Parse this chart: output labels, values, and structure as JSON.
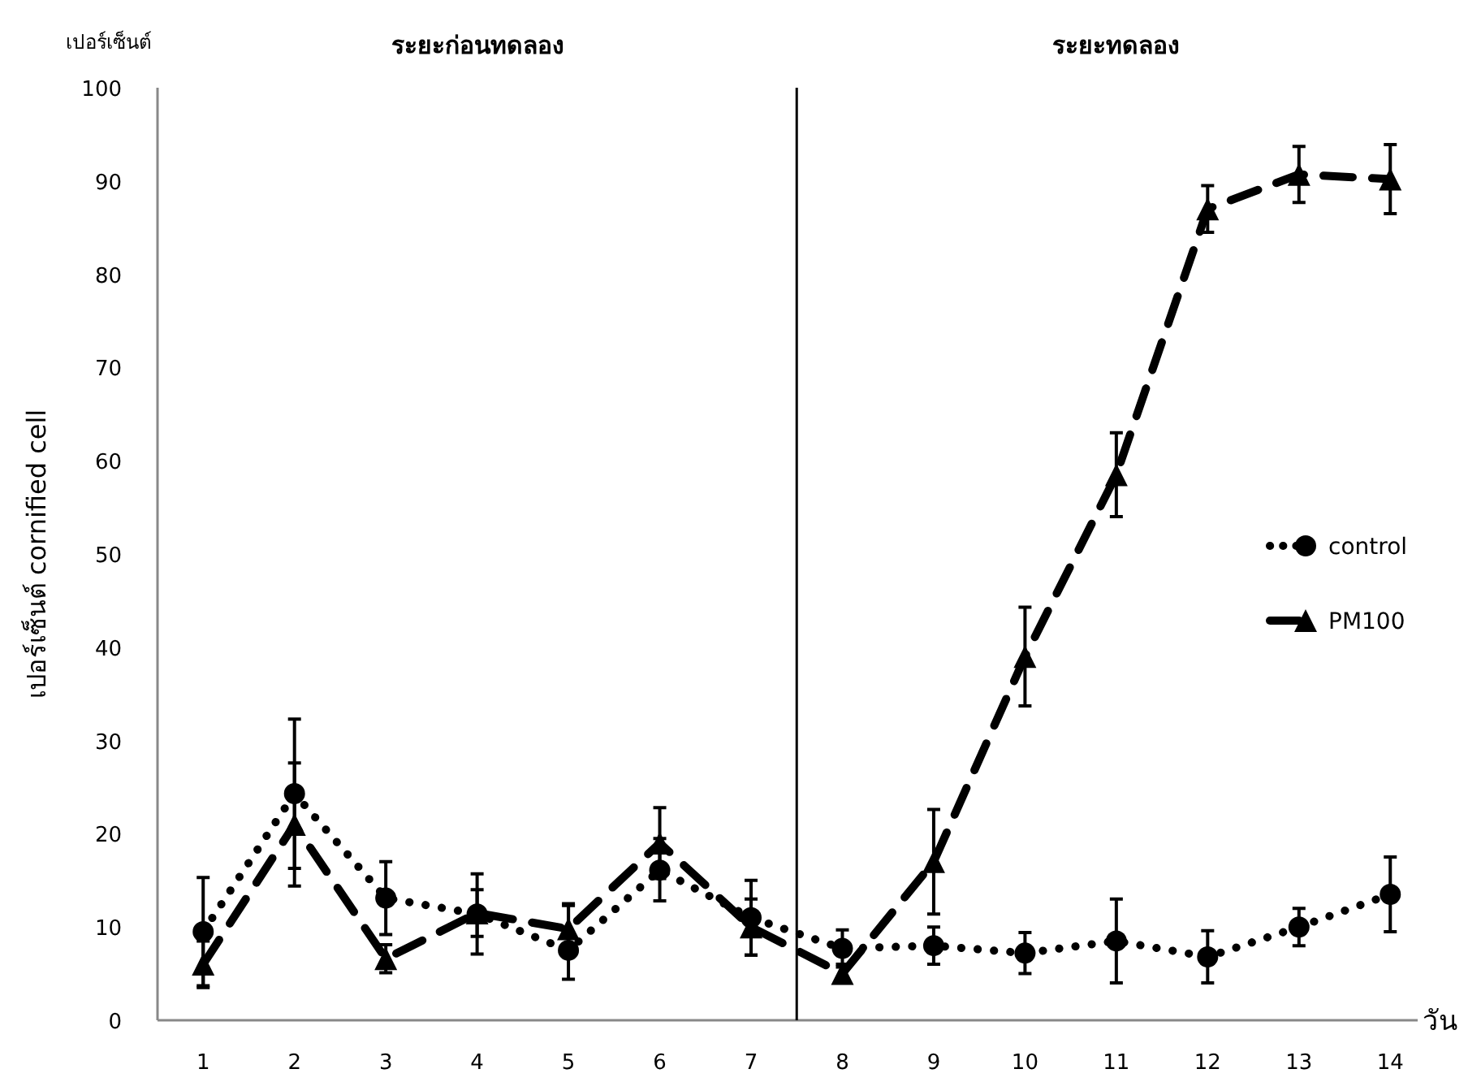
{
  "chart_data": {
    "type": "line",
    "ylabel": "เปอร์เซ็นต์ cornified cell",
    "xlabel": "วัน",
    "annotations": [
      "เปอร์เซ็นต์",
      "ระยะก่อนทดลอง",
      "ระยะทดลอง"
    ],
    "x": [
      1,
      2,
      3,
      4,
      5,
      6,
      7,
      8,
      9,
      10,
      11,
      12,
      13,
      14
    ],
    "xlim": [
      0.5,
      14.3
    ],
    "xticks": [
      1,
      2,
      3,
      4,
      5,
      6,
      7,
      8,
      9,
      10,
      11,
      12,
      13,
      14
    ],
    "ylim": [
      0,
      100
    ],
    "yticks": [
      0,
      10,
      20,
      30,
      40,
      50,
      60,
      70,
      80,
      90,
      100
    ],
    "grid": false,
    "legend": "right",
    "ref_lines": [
      {
        "axis": "x",
        "value": 7.5,
        "color": "#000000"
      }
    ],
    "series": [
      {
        "name": "control",
        "color": "#000000",
        "marker": "circle",
        "line_style": "dotted",
        "values": [
          9.5,
          24.3,
          13.1,
          11.4,
          7.5,
          16.1,
          11,
          7.7,
          8,
          7.2,
          8.5,
          6.8,
          10,
          13.5
        ],
        "errors": [
          5.8,
          8,
          3.9,
          4.3,
          [
            4.4,
            12.5
          ],
          [
            12.8,
            19.5
          ],
          4,
          2,
          2,
          2.2,
          4.5,
          2.8,
          2,
          4
        ]
      },
      {
        "name": "PM100",
        "color": "#000000",
        "marker": "triangle",
        "line_style": "dashed",
        "values": [
          6,
          21,
          6.6,
          11.5,
          9.8,
          19,
          10,
          5,
          17,
          39,
          58.5,
          87,
          90.7,
          90.2
        ],
        "errors": [
          2.5,
          6.6,
          1.5,
          2.5,
          2.5,
          3.8,
          3,
          1,
          5.6,
          5.3,
          4.5,
          2.5,
          3,
          3.7
        ]
      }
    ]
  }
}
